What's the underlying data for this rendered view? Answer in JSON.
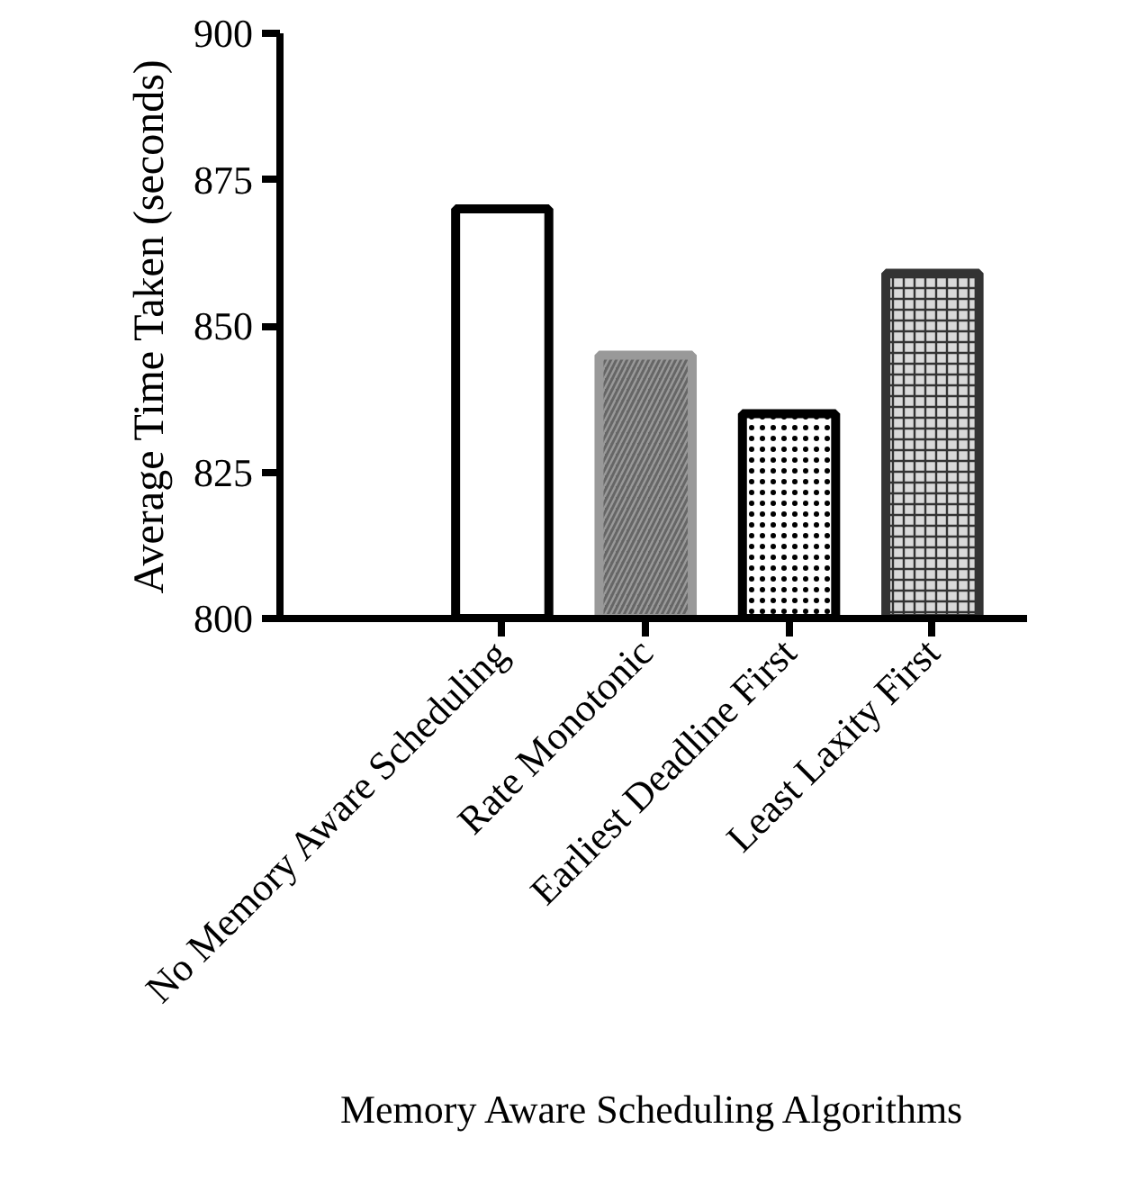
{
  "chart_data": {
    "type": "bar",
    "xlabel": "Memory Aware Scheduling Algorithms",
    "ylabel": "Average Time Taken (seconds)",
    "categories": [
      "No Memory Aware Scheduling",
      "Rate Monotonic",
      "Earliest Deadline First",
      "Least Laxity First"
    ],
    "values": [
      870,
      845,
      835,
      859
    ],
    "colors": [
      "#000000",
      "#999999",
      "#000000",
      "#333333"
    ],
    "ylim": [
      800,
      900
    ],
    "yticks": [
      800,
      825,
      850,
      875,
      900
    ],
    "grid": false
  }
}
